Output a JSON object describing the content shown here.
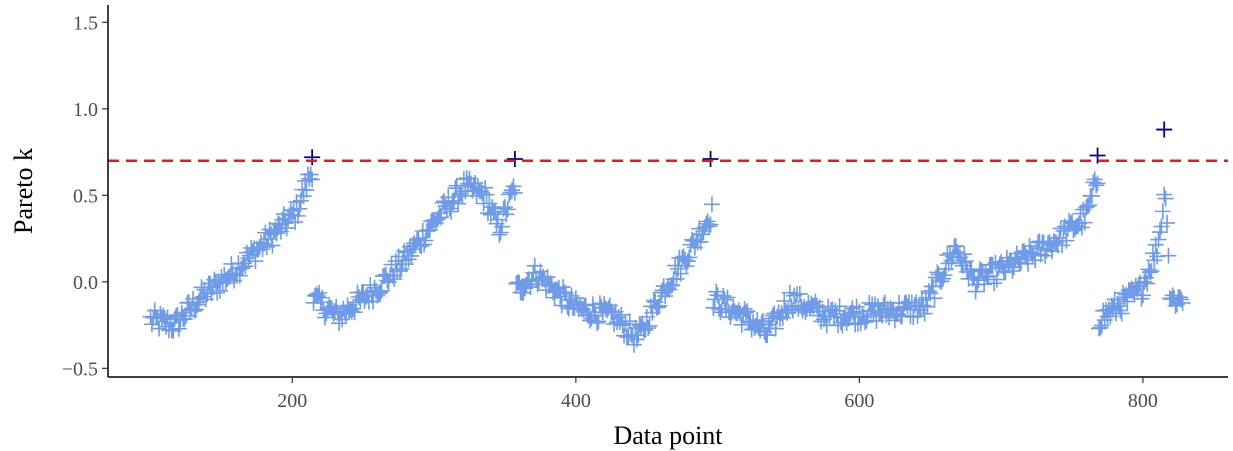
{
  "chart_data": {
    "type": "scatter",
    "title": "",
    "xlabel": "Data point",
    "ylabel": "Pareto k",
    "xlim": [
      70,
      860
    ],
    "ylim": [
      -0.55,
      1.6
    ],
    "x_ticks": [
      200,
      400,
      600,
      800
    ],
    "x_tick_labels": [
      "200",
      "400",
      "600",
      "800"
    ],
    "y_ticks": [
      -0.5,
      0.0,
      0.5,
      1.0,
      1.5
    ],
    "y_tick_labels": [
      "−0.5",
      "0.0",
      "0.5",
      "1.0",
      "1.5"
    ],
    "grid": false,
    "marker": "+",
    "threshold": {
      "value": 0.7,
      "style": "dashed",
      "color": "#e41a1c"
    },
    "colors": {
      "below_threshold": "#6f9be8",
      "above_threshold": "#000080",
      "axis": "#000000"
    },
    "segments": [
      {
        "x_start": 100,
        "x_end": 214,
        "anchors": [
          [
            0,
            -0.22
          ],
          [
            0.15,
            -0.25
          ],
          [
            0.3,
            -0.1
          ],
          [
            0.5,
            0.05
          ],
          [
            0.7,
            0.22
          ],
          [
            0.9,
            0.4
          ],
          [
            1.0,
            0.65
          ]
        ]
      },
      {
        "x_start": 215,
        "x_end": 357,
        "anchors": [
          [
            0,
            -0.1
          ],
          [
            0.12,
            -0.2
          ],
          [
            0.3,
            -0.05
          ],
          [
            0.45,
            0.12
          ],
          [
            0.6,
            0.35
          ],
          [
            0.75,
            0.55
          ],
          [
            0.85,
            0.5
          ],
          [
            0.92,
            0.3
          ],
          [
            1.0,
            0.55
          ]
        ]
      },
      {
        "x_start": 358,
        "x_end": 496,
        "anchors": [
          [
            0,
            -0.05
          ],
          [
            0.1,
            0.05
          ],
          [
            0.3,
            -0.15
          ],
          [
            0.5,
            -0.2
          ],
          [
            0.62,
            -0.33
          ],
          [
            0.75,
            -0.05
          ],
          [
            0.87,
            0.15
          ],
          [
            1.0,
            0.4
          ]
        ]
      },
      {
        "x_start": 497,
        "x_end": 768,
        "anchors": [
          [
            0,
            -0.1
          ],
          [
            0.08,
            -0.2
          ],
          [
            0.14,
            -0.3
          ],
          [
            0.2,
            -0.1
          ],
          [
            0.3,
            -0.2
          ],
          [
            0.4,
            -0.18
          ],
          [
            0.55,
            -0.15
          ],
          [
            0.63,
            0.2
          ],
          [
            0.68,
            0.0
          ],
          [
            0.8,
            0.12
          ],
          [
            0.9,
            0.25
          ],
          [
            0.97,
            0.38
          ],
          [
            1.0,
            0.6
          ]
        ]
      },
      {
        "x_start": 769,
        "x_end": 828,
        "anchors": [
          [
            0,
            -0.22
          ],
          [
            0.2,
            -0.15
          ],
          [
            0.5,
            -0.05
          ],
          [
            0.7,
            0.2
          ],
          [
            0.8,
            0.55
          ],
          [
            0.85,
            -0.1
          ],
          [
            1.0,
            -0.1
          ]
        ]
      }
    ],
    "high_points": [
      {
        "x": 214,
        "y": 0.72
      },
      {
        "x": 357,
        "y": 0.71
      },
      {
        "x": 495,
        "y": 0.71
      },
      {
        "x": 768,
        "y": 0.73
      },
      {
        "x": 815,
        "y": 0.88
      }
    ]
  }
}
